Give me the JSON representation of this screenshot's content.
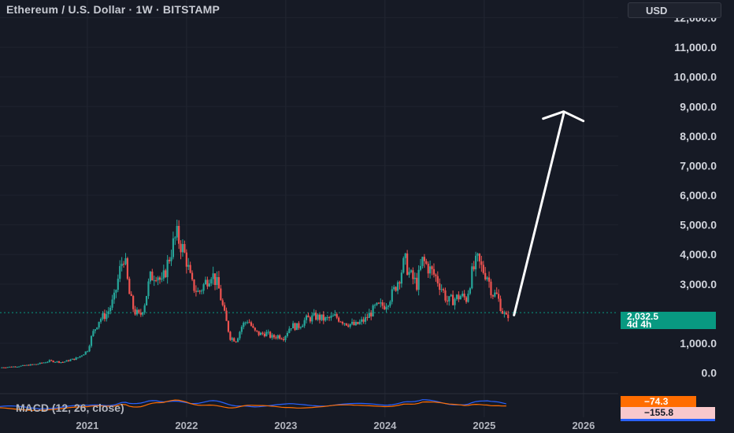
{
  "header": {
    "symbol_title": "Ethereum / U.S. Dollar · 1W · BITSTAMP",
    "currency": "USD"
  },
  "last_price": {
    "value": "2,032.5",
    "countdown": "4d 4h"
  },
  "macd": {
    "label": "MACD (12, 26, close)",
    "value1": "−74.3",
    "value2": "−155.8"
  },
  "chart_data": {
    "type": "candlestick",
    "symbol": "Ethereum / U.S. Dollar",
    "interval": "1W",
    "exchange": "BITSTAMP",
    "y_axis_labels": [
      "12,000.0",
      "11,000.0",
      "10,000.0",
      "9,000.0",
      "8,000.0",
      "7,000.0",
      "6,000.0",
      "5,000.0",
      "4,000.0",
      "3,000.0",
      "1,000.0",
      "0.0"
    ],
    "y_axis_values": [
      12000,
      11000,
      10000,
      9000,
      8000,
      7000,
      6000,
      5000,
      4000,
      3000,
      1000,
      0
    ],
    "x_axis_labels": [
      "2021",
      "2022",
      "2023",
      "2024",
      "2025",
      "2026"
    ],
    "x_axis_values": [
      2021,
      2022,
      2023,
      2024,
      2025,
      2026
    ],
    "ylim": [
      -650,
      12600
    ],
    "xlim": [
      2020.12,
      2026.35
    ],
    "last_price": 2032.5,
    "price_series": [
      [
        2020.12,
        180
      ],
      [
        2020.3,
        220
      ],
      [
        2020.5,
        300
      ],
      [
        2020.62,
        400
      ],
      [
        2020.75,
        360
      ],
      [
        2020.9,
        500
      ],
      [
        2021.0,
        750
      ],
      [
        2021.05,
        1300
      ],
      [
        2021.12,
        1800
      ],
      [
        2021.2,
        2000
      ],
      [
        2021.27,
        2500
      ],
      [
        2021.33,
        3500
      ],
      [
        2021.37,
        4000
      ],
      [
        2021.42,
        2700
      ],
      [
        2021.47,
        2100
      ],
      [
        2021.53,
        1900
      ],
      [
        2021.58,
        2400
      ],
      [
        2021.63,
        3200
      ],
      [
        2021.7,
        3400
      ],
      [
        2021.75,
        3000
      ],
      [
        2021.8,
        3600
      ],
      [
        2021.86,
        4300
      ],
      [
        2021.9,
        4650
      ],
      [
        2021.96,
        4200
      ],
      [
        2022.0,
        3800
      ],
      [
        2022.05,
        3000
      ],
      [
        2022.12,
        2700
      ],
      [
        2022.18,
        3000
      ],
      [
        2022.25,
        3400
      ],
      [
        2022.32,
        2900
      ],
      [
        2022.38,
        2000
      ],
      [
        2022.44,
        1200
      ],
      [
        2022.5,
        1100
      ],
      [
        2022.56,
        1600
      ],
      [
        2022.62,
        1800
      ],
      [
        2022.68,
        1400
      ],
      [
        2022.74,
        1300
      ],
      [
        2022.8,
        1350
      ],
      [
        2022.86,
        1200
      ],
      [
        2022.92,
        1250
      ],
      [
        2022.98,
        1200
      ],
      [
        2023.05,
        1600
      ],
      [
        2023.12,
        1550
      ],
      [
        2023.2,
        1800
      ],
      [
        2023.3,
        1900
      ],
      [
        2023.4,
        1800
      ],
      [
        2023.5,
        1900
      ],
      [
        2023.6,
        1700
      ],
      [
        2023.7,
        1600
      ],
      [
        2023.8,
        1800
      ],
      [
        2023.9,
        2200
      ],
      [
        2024.0,
        2300
      ],
      [
        2024.08,
        2700
      ],
      [
        2024.15,
        3300
      ],
      [
        2024.2,
        3800
      ],
      [
        2024.25,
        3300
      ],
      [
        2024.32,
        3000
      ],
      [
        2024.38,
        3800
      ],
      [
        2024.45,
        3500
      ],
      [
        2024.52,
        3200
      ],
      [
        2024.58,
        2800
      ],
      [
        2024.63,
        2400
      ],
      [
        2024.7,
        2500
      ],
      [
        2024.76,
        2600
      ],
      [
        2024.82,
        2500
      ],
      [
        2024.87,
        3300
      ],
      [
        2024.93,
        3800
      ],
      [
        2024.98,
        3500
      ],
      [
        2025.03,
        3300
      ],
      [
        2025.08,
        2700
      ],
      [
        2025.13,
        2600
      ],
      [
        2025.18,
        2100
      ],
      [
        2025.22,
        1850
      ],
      [
        2025.25,
        2032.5
      ]
    ],
    "projection_arrow": {
      "from": [
        2025.3,
        1950
      ],
      "to": [
        2025.8,
        8750
      ]
    },
    "macd": {
      "fast": 12,
      "slow": 26,
      "source": "close",
      "macd_value": -74.3,
      "signal_value": -155.8
    }
  }
}
